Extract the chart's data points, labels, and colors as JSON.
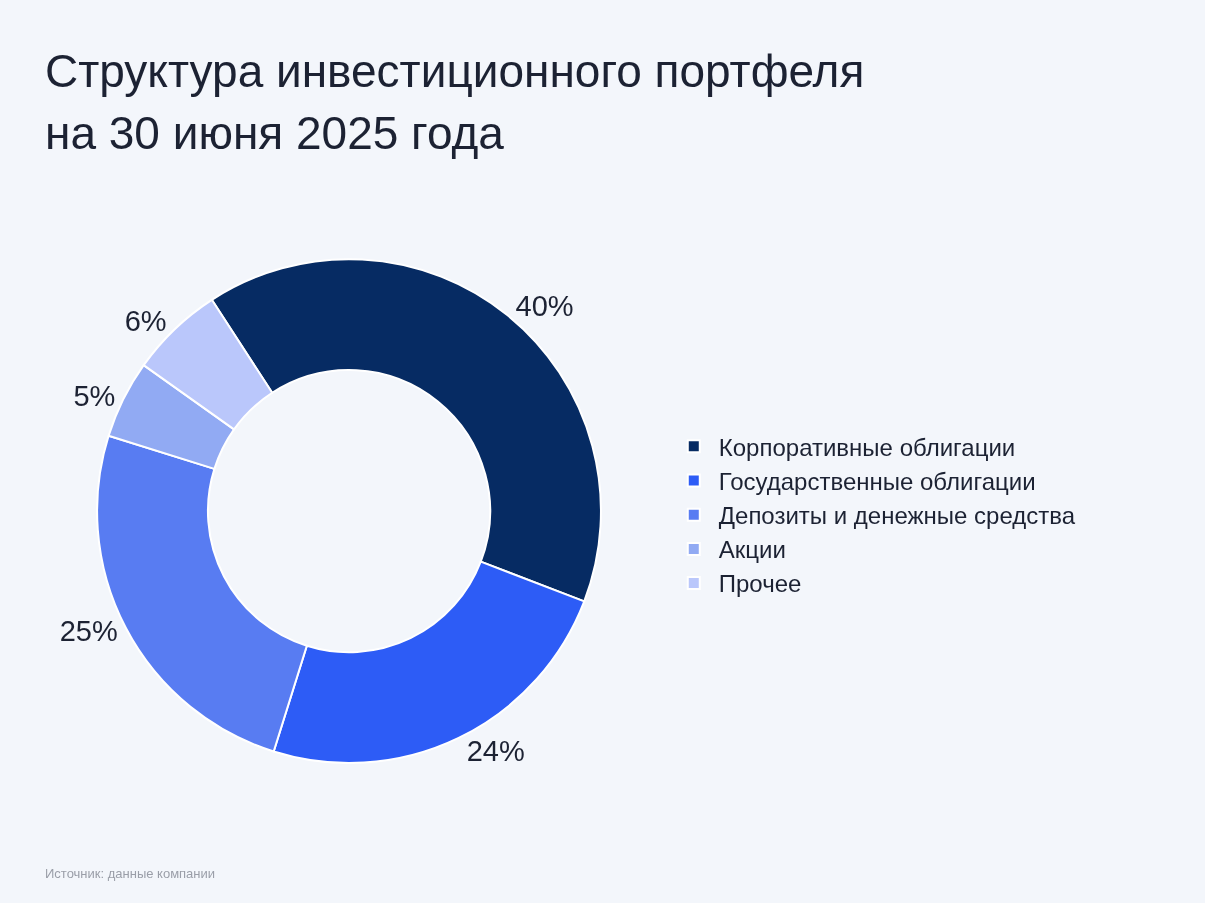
{
  "chart_data": {
    "type": "donut",
    "title": "Структура инвестиционного портфеля на 30 июня 2025 года",
    "categories": [
      "Корпоративные облигации",
      "Государственные облигации",
      "Депозиты и денежные средства",
      "Акции",
      "Прочее"
    ],
    "values": [
      40,
      24,
      25,
      5,
      6
    ],
    "colors": [
      "#062b63",
      "#2d5cf6",
      "#587cf2",
      "#91aaf3",
      "#bac7fb"
    ],
    "value_labels": [
      "40%",
      "24%",
      "25%",
      "5%",
      "6%"
    ],
    "legend": "right",
    "annotations": [
      "Источник: данные компании"
    ]
  }
}
